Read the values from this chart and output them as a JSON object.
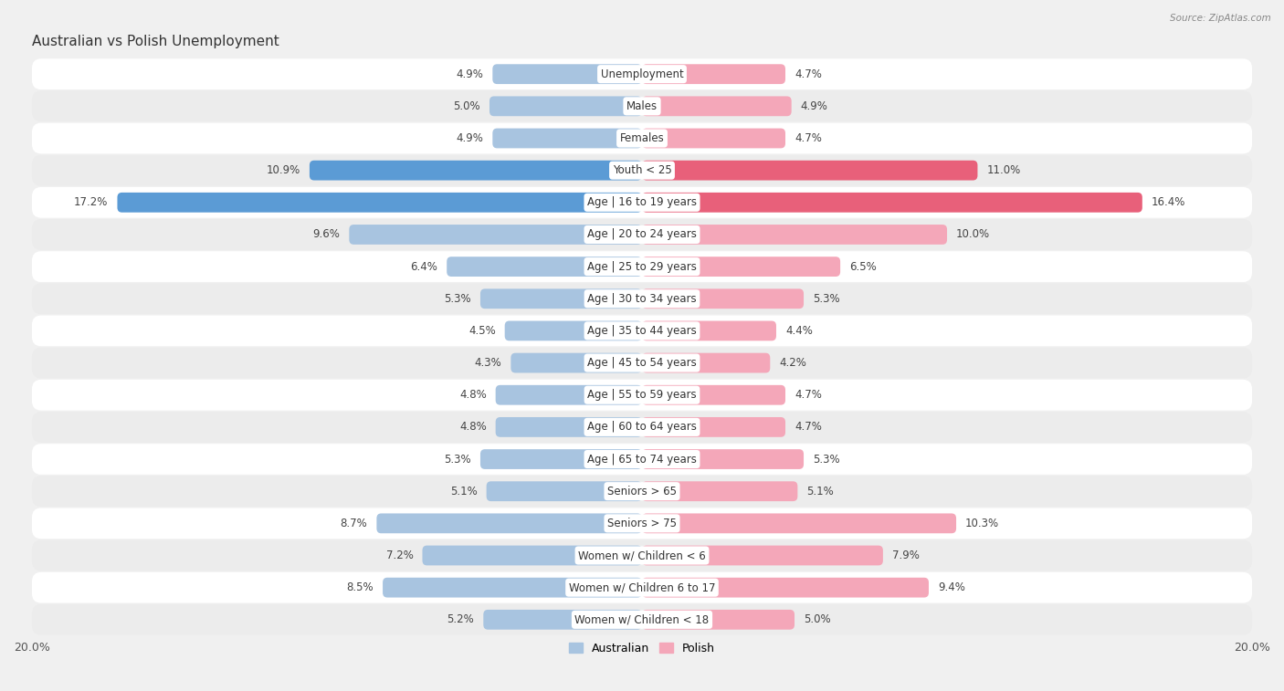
{
  "title": "Australian vs Polish Unemployment",
  "source": "Source: ZipAtlas.com",
  "categories": [
    "Unemployment",
    "Males",
    "Females",
    "Youth < 25",
    "Age | 16 to 19 years",
    "Age | 20 to 24 years",
    "Age | 25 to 29 years",
    "Age | 30 to 34 years",
    "Age | 35 to 44 years",
    "Age | 45 to 54 years",
    "Age | 55 to 59 years",
    "Age | 60 to 64 years",
    "Age | 65 to 74 years",
    "Seniors > 65",
    "Seniors > 75",
    "Women w/ Children < 6",
    "Women w/ Children 6 to 17",
    "Women w/ Children < 18"
  ],
  "australian": [
    4.9,
    5.0,
    4.9,
    10.9,
    17.2,
    9.6,
    6.4,
    5.3,
    4.5,
    4.3,
    4.8,
    4.8,
    5.3,
    5.1,
    8.7,
    7.2,
    8.5,
    5.2
  ],
  "polish": [
    4.7,
    4.9,
    4.7,
    11.0,
    16.4,
    10.0,
    6.5,
    5.3,
    4.4,
    4.2,
    4.7,
    4.7,
    5.3,
    5.1,
    10.3,
    7.9,
    9.4,
    5.0
  ],
  "xlim": 20.0,
  "bar_height": 0.62,
  "australian_color": "#a8c4e0",
  "polish_color": "#f4a7b9",
  "highlight_australian_color": "#5b9bd5",
  "highlight_polish_color": "#e8607a",
  "highlight_rows": [
    3,
    4
  ],
  "row_colors": [
    "#ffffff",
    "#ececec"
  ],
  "bg_color": "#f0f0f0",
  "title_fontsize": 11,
  "label_fontsize": 8.5,
  "value_fontsize": 8.5,
  "tick_fontsize": 9
}
